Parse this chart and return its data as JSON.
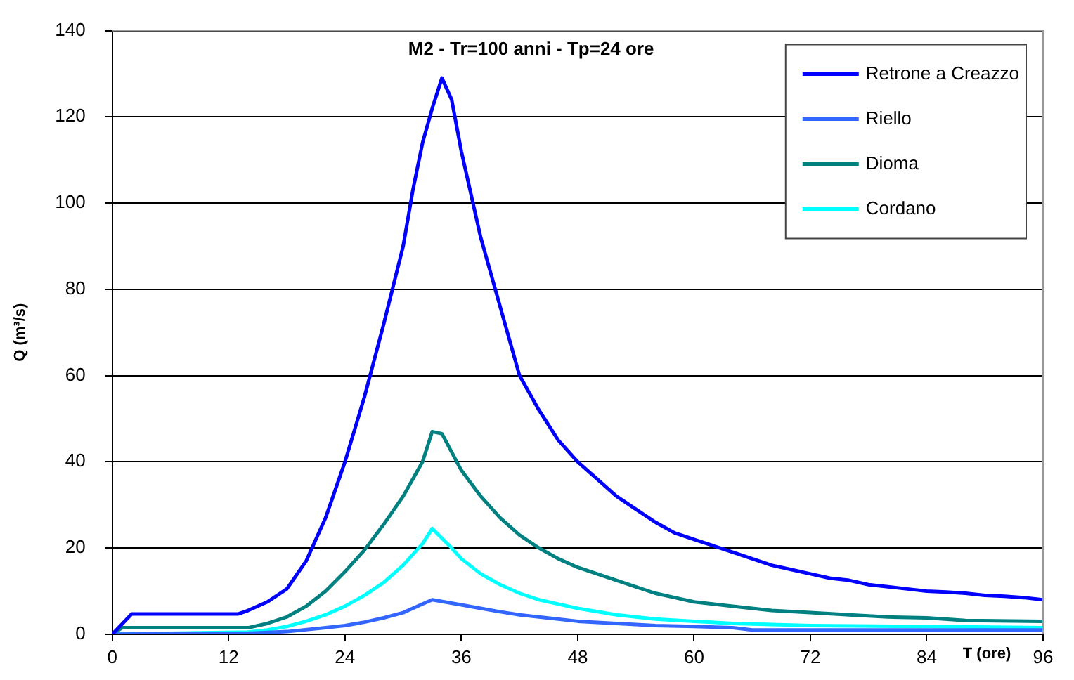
{
  "chart_data": {
    "type": "line",
    "title": "M2 - Tr=100 anni - Tp=24 ore",
    "xlabel": "T (ore)",
    "ylabel": "Q (m³/s)",
    "xlim": [
      0,
      96
    ],
    "xticks": [
      0,
      12,
      24,
      36,
      48,
      60,
      72,
      84,
      96
    ],
    "ylim": [
      0,
      140
    ],
    "yticks": [
      0,
      20,
      40,
      60,
      80,
      100,
      120,
      140
    ],
    "grid": "y",
    "legend": "top right",
    "marker": "none",
    "line_style": "solid",
    "series": [
      {
        "name": "Retrone a Creazzo",
        "color": "#0000ff",
        "x": [
          0,
          2,
          13,
          14,
          16,
          18,
          20,
          22,
          24,
          26,
          28,
          30,
          31,
          32,
          33,
          34,
          35,
          36,
          38,
          40,
          42,
          44,
          46,
          48,
          50,
          52,
          54,
          56,
          58,
          60,
          62,
          64,
          66,
          68,
          70,
          72,
          74,
          76,
          78,
          80,
          82,
          84,
          86,
          88,
          90,
          92,
          94,
          96
        ],
        "values": [
          0,
          4.7,
          4.7,
          5.5,
          7.5,
          10.5,
          17,
          27,
          40,
          55,
          72,
          90,
          103,
          114,
          122,
          129,
          124,
          112,
          92,
          76,
          60,
          52,
          45,
          40,
          36,
          32,
          29,
          26,
          23.5,
          22,
          20.5,
          19,
          17.5,
          16,
          15,
          14,
          13,
          12.5,
          11.5,
          11,
          10.5,
          10,
          9.8,
          9.5,
          9,
          8.8,
          8.5,
          8
        ]
      },
      {
        "name": "Riello",
        "color": "#3366ff",
        "x": [
          0,
          14,
          18,
          22,
          24,
          26,
          28,
          30,
          32,
          33,
          36,
          38,
          40,
          42,
          44,
          48,
          52,
          56,
          60,
          64,
          66,
          96
        ],
        "values": [
          0,
          0.2,
          0.6,
          1.5,
          2,
          2.8,
          3.8,
          5,
          7,
          8,
          6.8,
          6,
          5.2,
          4.5,
          4,
          3,
          2.5,
          2,
          1.8,
          1.5,
          1,
          1
        ]
      },
      {
        "name": "Dioma",
        "color": "#008080",
        "x": [
          0,
          1,
          14,
          16,
          18,
          20,
          22,
          24,
          26,
          28,
          30,
          32,
          33,
          34,
          36,
          38,
          40,
          42,
          44,
          46,
          48,
          50,
          52,
          54,
          56,
          58,
          60,
          64,
          68,
          72,
          76,
          80,
          84,
          88,
          96
        ],
        "values": [
          0,
          1.5,
          1.5,
          2.5,
          4,
          6.5,
          10,
          14.5,
          19.5,
          25.5,
          32,
          40,
          47,
          46.5,
          38,
          32,
          27,
          23,
          20,
          17.5,
          15.5,
          14,
          12.5,
          11,
          9.5,
          8.5,
          7.5,
          6.5,
          5.5,
          5,
          4.5,
          4,
          3.8,
          3.2,
          3
        ]
      },
      {
        "name": "Cordano",
        "color": "#00ffff",
        "x": [
          0,
          14,
          16,
          18,
          20,
          22,
          24,
          26,
          28,
          30,
          32,
          33,
          35,
          36,
          38,
          40,
          42,
          44,
          46,
          48,
          52,
          56,
          60,
          64,
          72,
          84,
          96
        ],
        "values": [
          0,
          0.5,
          1,
          1.8,
          3,
          4.5,
          6.5,
          9,
          12,
          16,
          21,
          24.5,
          20,
          17.5,
          14,
          11.5,
          9.5,
          8,
          7,
          6,
          4.5,
          3.5,
          3,
          2.5,
          2,
          1.8,
          1.5
        ]
      }
    ]
  }
}
